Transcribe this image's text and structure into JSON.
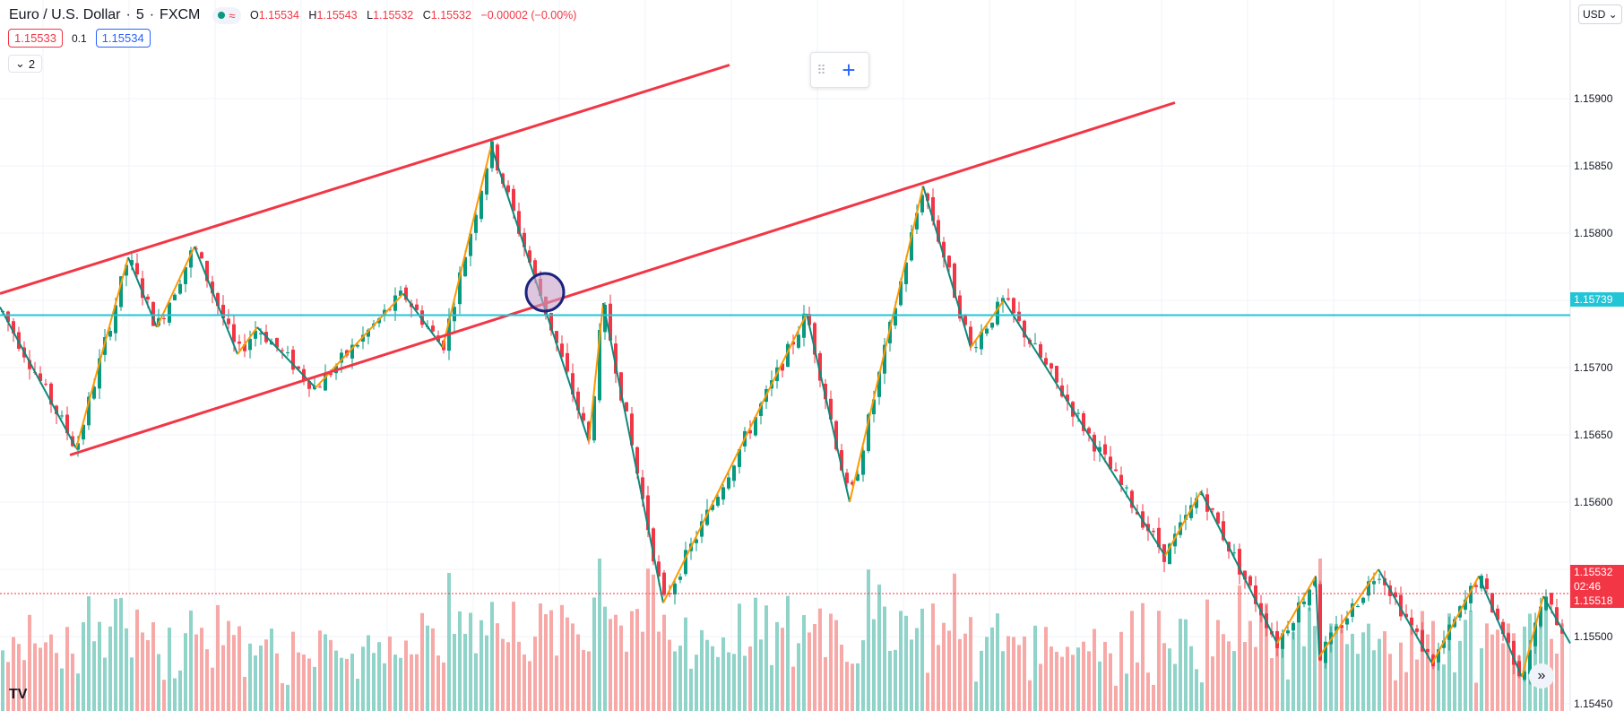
{
  "header": {
    "symbol": "Euro / U.S. Dollar",
    "interval": "5",
    "exchange": "FXCM",
    "ohlc": {
      "o_label": "O",
      "o": "1.15534",
      "h_label": "H",
      "h": "1.15543",
      "l_label": "L",
      "l": "1.15532",
      "c_label": "C",
      "c": "1.15532",
      "change": "−0.00002 (−0.00%)"
    },
    "bid": "1.15533",
    "spread": "0.1",
    "ask": "1.15534",
    "indicators_toggle": "2",
    "currency": "USD"
  },
  "colors": {
    "up": "#089981",
    "down": "#f23645",
    "vol_up": "#8fd3c9",
    "vol_down": "#f7a9a7",
    "zig_orange": "#ff9800",
    "zig_green": "#0d8a7b",
    "trend": "#f23645",
    "hline": "#22c5d6"
  },
  "price_axis": {
    "ticks": [
      "1.15900",
      "1.15850",
      "1.15800",
      "1.15750",
      "1.15700",
      "1.15650",
      "1.15600",
      "1.15550",
      "1.15500",
      "1.15450"
    ],
    "horizontal_line": "1.15739",
    "last_price": "1.15532",
    "countdown": "02:46",
    "last_low": "1.15518"
  },
  "chart_data": {
    "type": "candlestick",
    "symbol": "EURUSD",
    "timeframe_minutes": 5,
    "ylim": [
      1.1543,
      1.1596
    ],
    "zigzag_pivots": [
      1.15745,
      1.1564,
      1.15782,
      1.1573,
      1.1579,
      1.1571,
      1.1573,
      1.15685,
      1.15755,
      1.15715,
      1.15865,
      1.15645,
      1.15748,
      1.15525,
      1.1574,
      1.156,
      1.15835,
      1.15715,
      1.1575,
      1.1556,
      1.15608,
      1.15495,
      1.15545,
      1.15485,
      1.1555,
      1.1548,
      1.15545,
      1.1547,
      1.1553,
      1.15495
    ],
    "trend_lines": [
      {
        "from": 1.15755,
        "to": 1.15925
      },
      {
        "from": 1.15635,
        "to": 1.15897
      }
    ],
    "horizontal_level": 1.15739,
    "last_price": 1.15532
  }
}
